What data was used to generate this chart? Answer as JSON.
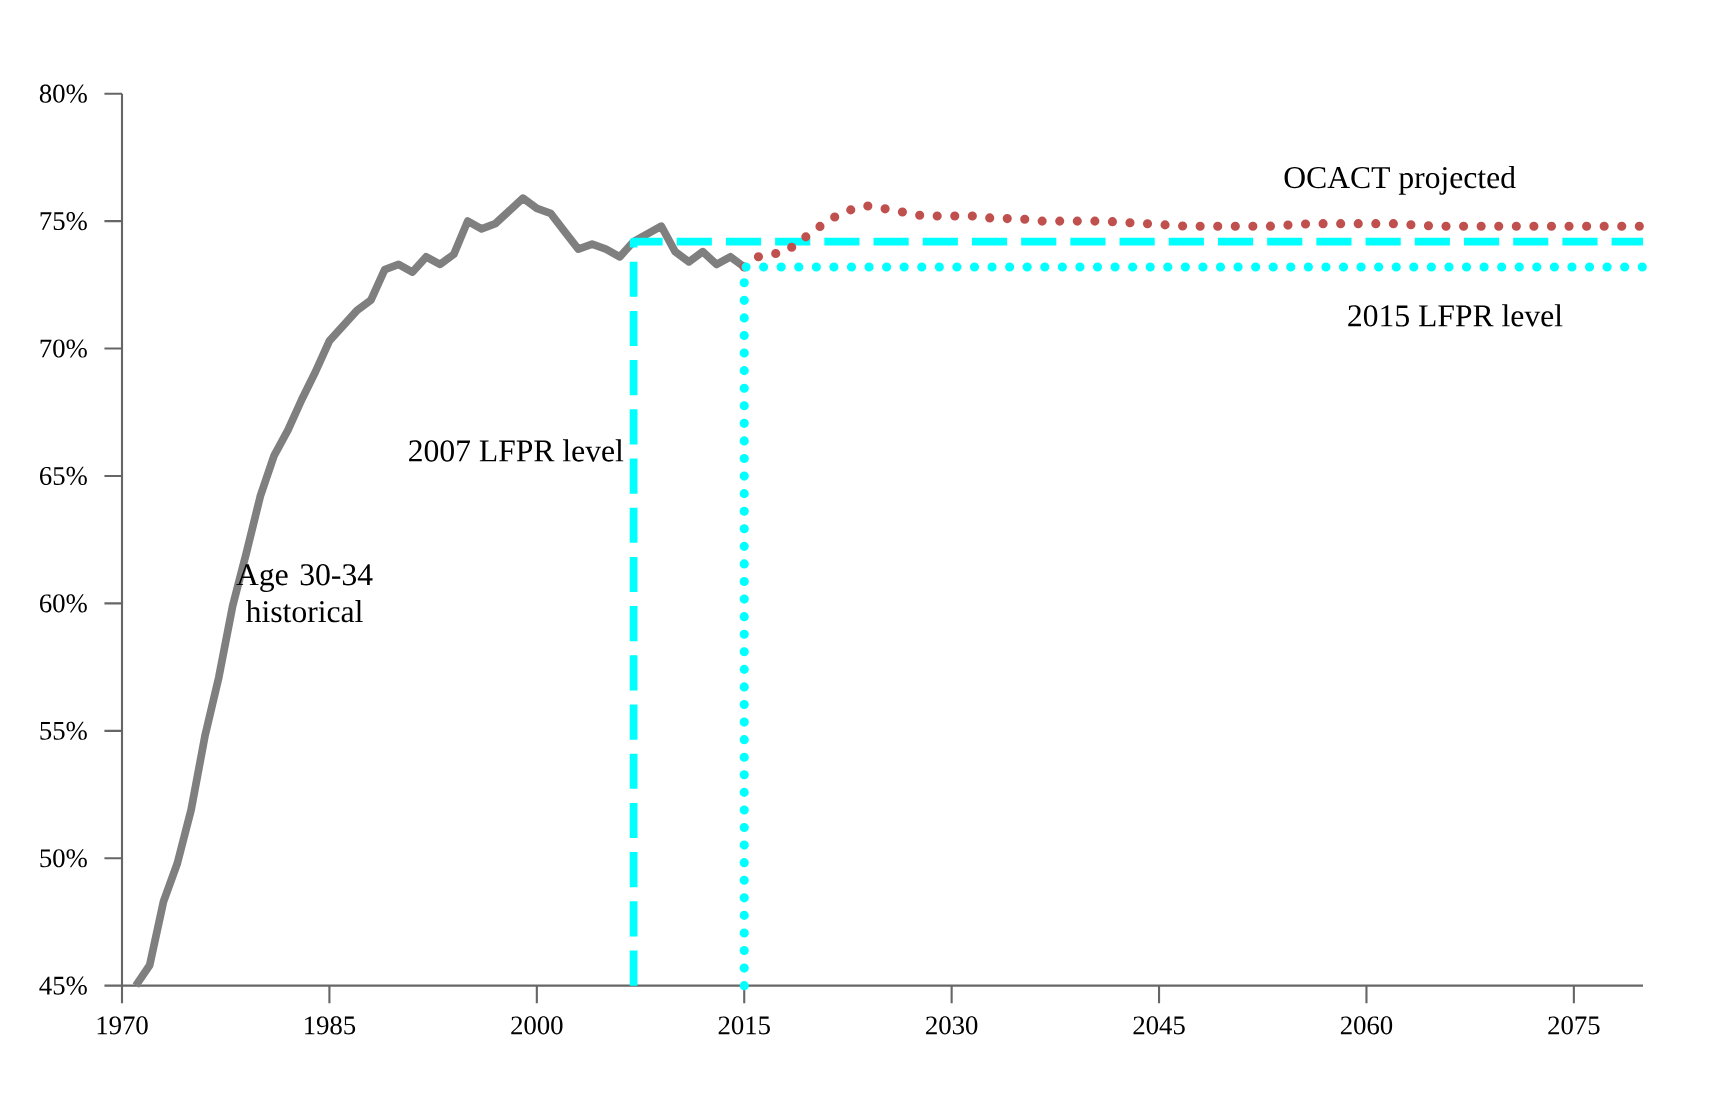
{
  "chart_data": {
    "type": "line",
    "xlim": [
      1970,
      2080
    ],
    "xticks": [
      1970,
      1985,
      2000,
      2015,
      2030,
      2045,
      2060,
      2075
    ],
    "ylim": [
      45,
      80
    ],
    "yticks": [
      {
        "value": 45,
        "label": "45%"
      },
      {
        "value": 50,
        "label": "50%"
      },
      {
        "value": 55,
        "label": "55%"
      },
      {
        "value": 60,
        "label": "60%"
      },
      {
        "value": 65,
        "label": "65%"
      },
      {
        "value": 70,
        "label": "70%"
      },
      {
        "value": 75,
        "label": "75%"
      },
      {
        "value": 80,
        "label": "80%"
      }
    ],
    "grid": false,
    "legend": false,
    "marker": "none",
    "series": [
      {
        "name": "Age 30-34 historical",
        "color": "#7f7f7f",
        "line_style": "solid",
        "x": [
          1971,
          1972,
          1973,
          1974,
          1975,
          1976,
          1977,
          1978,
          1979,
          1980,
          1981,
          1982,
          1983,
          1984,
          1985,
          1986,
          1987,
          1988,
          1989,
          1990,
          1991,
          1992,
          1993,
          1994,
          1995,
          1996,
          1997,
          1998,
          1999,
          2000,
          2001,
          2002,
          2003,
          2004,
          2005,
          2006,
          2007,
          2008,
          2009,
          2010,
          2011,
          2012,
          2013,
          2014,
          2015
        ],
        "values": [
          45.0,
          45.8,
          48.3,
          49.8,
          51.9,
          54.8,
          57.1,
          59.9,
          62.0,
          64.2,
          65.8,
          66.8,
          68.0,
          69.1,
          70.3,
          70.9,
          71.5,
          71.9,
          73.1,
          73.3,
          73.0,
          73.6,
          73.3,
          73.7,
          75.0,
          74.7,
          74.9,
          75.4,
          75.9,
          75.5,
          75.3,
          74.6,
          73.9,
          74.1,
          73.9,
          73.6,
          74.2,
          74.5,
          74.8,
          73.8,
          73.4,
          73.8,
          73.3,
          73.6,
          73.2
        ]
      },
      {
        "name": "2007 LFPR level",
        "color": "#00ffff",
        "line_style": "dashed",
        "x": [
          2007,
          2007,
          2080
        ],
        "values": [
          45,
          74.2,
          74.2
        ]
      },
      {
        "name": "OCACT projected",
        "color": "#c0504d",
        "line_style": "dotted",
        "x": [
          2015,
          2016,
          2017,
          2018,
          2019,
          2020,
          2021,
          2022,
          2023,
          2024,
          2025,
          2026,
          2027,
          2028,
          2029,
          2030,
          2031,
          2032,
          2033,
          2034,
          2035,
          2036,
          2038,
          2041,
          2044,
          2047,
          2050,
          2053,
          2056,
          2059,
          2062,
          2065,
          2068,
          2071,
          2074,
          2077,
          2080
        ],
        "values": [
          73.2,
          73.6,
          73.7,
          73.8,
          74.2,
          74.6,
          75.0,
          75.3,
          75.5,
          75.6,
          75.5,
          75.4,
          75.3,
          75.2,
          75.2,
          75.2,
          75.2,
          75.2,
          75.1,
          75.1,
          75.1,
          75.0,
          75.0,
          75.0,
          74.9,
          74.8,
          74.8,
          74.8,
          74.9,
          74.9,
          74.9,
          74.8,
          74.8,
          74.8,
          74.8,
          74.8,
          74.8
        ]
      },
      {
        "name": "2015 LFPR level",
        "color": "#00ffff",
        "line_style": "dotted",
        "x": [
          2015,
          2015,
          2080
        ],
        "values": [
          45,
          73.2,
          73.2
        ]
      }
    ]
  }
}
